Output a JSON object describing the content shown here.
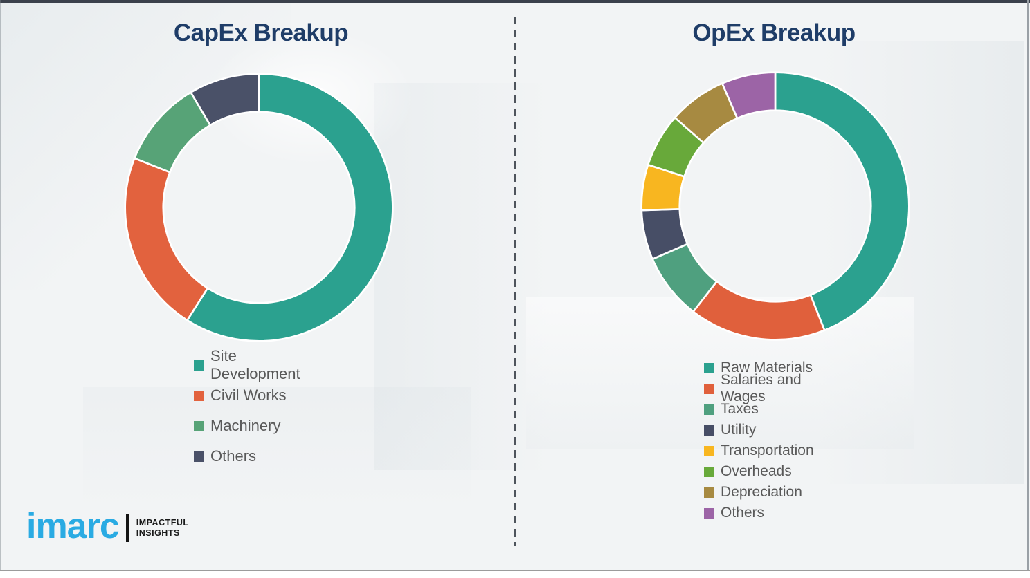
{
  "chart_data": [
    {
      "type": "pie",
      "subtype": "donut",
      "title": "CapEx Breakup",
      "categories": [
        "Site Development",
        "Civil Works",
        "Machinery",
        "Others"
      ],
      "values": [
        59,
        22,
        10.5,
        8.5
      ],
      "values_note": "percent, estimated from arc angles (no data labels shown)",
      "colors": [
        "#2BA18F",
        "#E2623E",
        "#57A377",
        "#4A5168"
      ],
      "start_angle_deg": 0,
      "direction": "clockwise",
      "inner_radius_ratio": 0.715,
      "legend_position": "below-left"
    },
    {
      "type": "pie",
      "subtype": "donut",
      "title": "OpEx Breakup",
      "categories": [
        "Raw Materials",
        "Salaries and Wages",
        "Taxes",
        "Utility",
        "Transportation",
        "Overheads",
        "Depreciation",
        "Others"
      ],
      "values": [
        44,
        16.5,
        8,
        6,
        5.5,
        6.5,
        7,
        6.5
      ],
      "values_note": "percent, estimated from arc angles (no data labels shown)",
      "colors": [
        "#2BA18F",
        "#E0603C",
        "#4FA07F",
        "#474E66",
        "#F8B620",
        "#68A93A",
        "#A78A41",
        "#9C64A6"
      ],
      "start_angle_deg": 0,
      "direction": "clockwise",
      "inner_radius_ratio": 0.715,
      "legend_position": "below-left"
    }
  ],
  "styles": {
    "title_color": "#1F3D68",
    "legend_text_color": "#595959",
    "divider_color": "#4E545C",
    "background_color": "#F2F4F5"
  },
  "logo": {
    "brand": "imarc",
    "tagline_line1": "IMPACTFUL",
    "tagline_line2": "INSIGHTS",
    "brand_color": "#2AABE3"
  }
}
